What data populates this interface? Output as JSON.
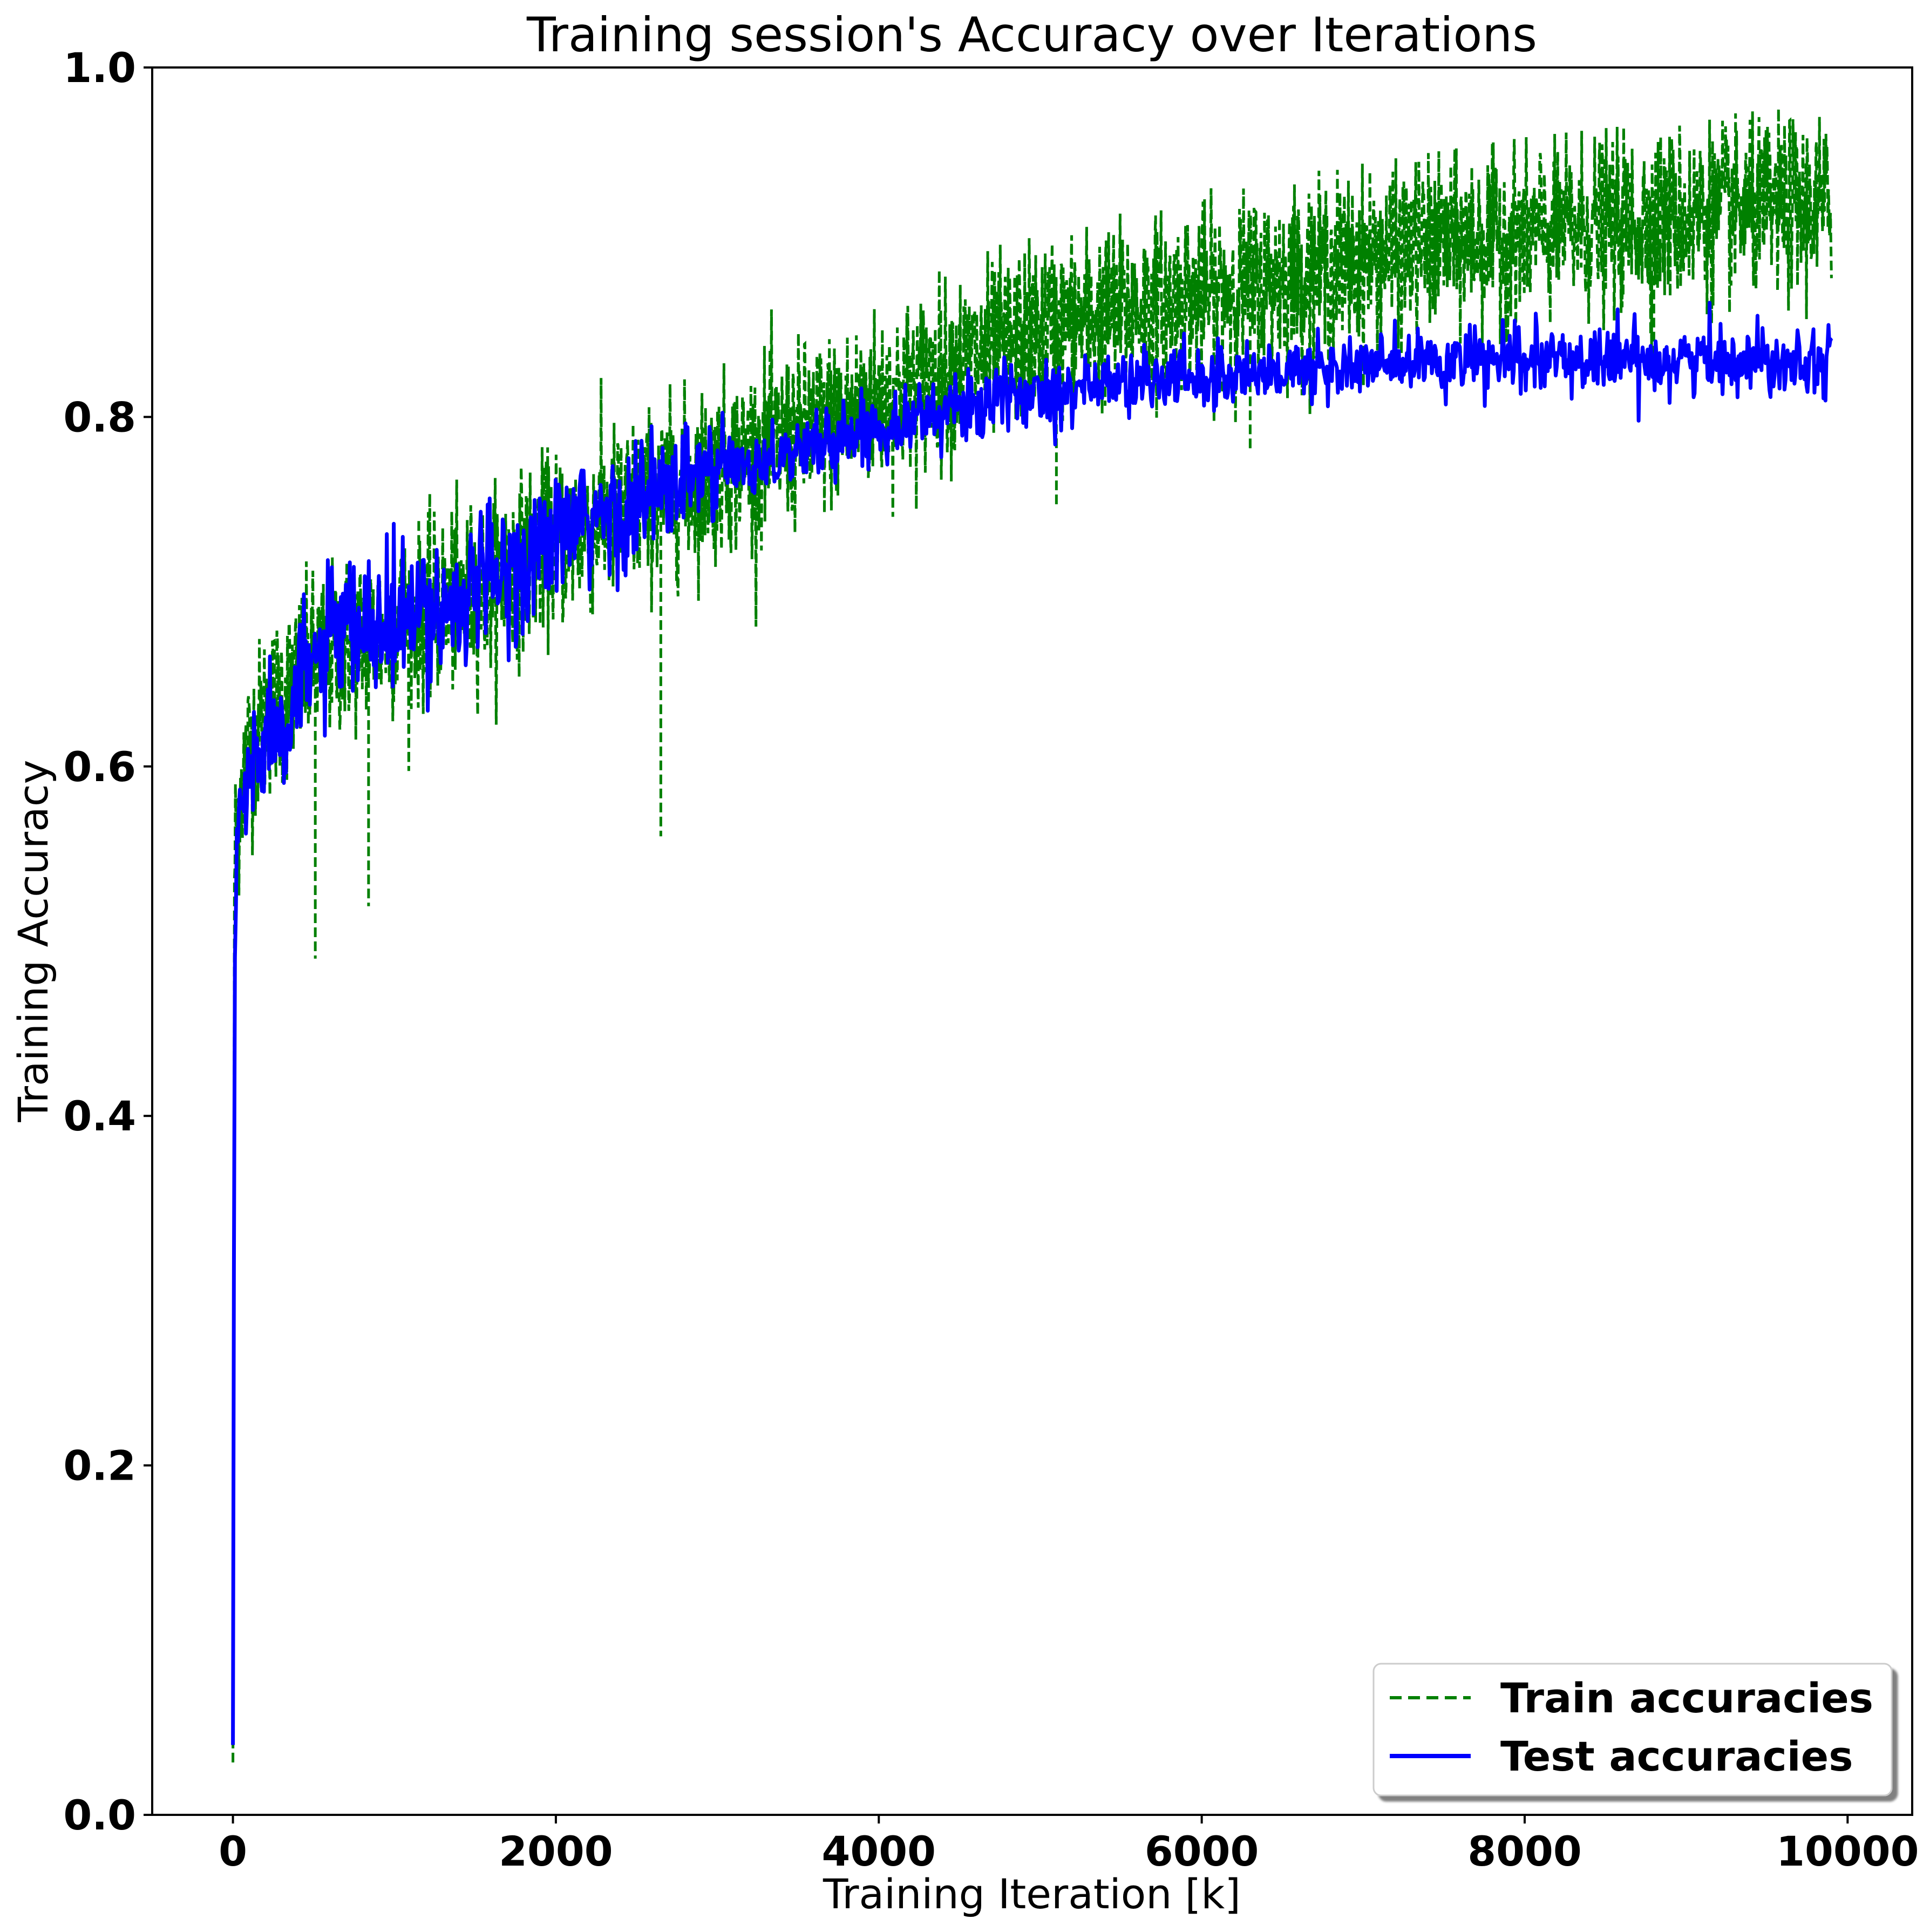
{
  "chart_data": {
    "type": "line",
    "title": "Training session's Accuracy over Iterations",
    "xlabel": "Training Iteration [k]",
    "ylabel": "Training Accuracy",
    "xlim": [
      -500,
      10400
    ],
    "ylim": [
      0.0,
      1.0
    ],
    "xticks": [
      0,
      2000,
      4000,
      6000,
      8000,
      10000
    ],
    "xtick_labels": [
      "0",
      "2000",
      "4000",
      "6000",
      "8000",
      "10000"
    ],
    "yticks": [
      0.0,
      0.2,
      0.4,
      0.6,
      0.8,
      1.0
    ],
    "ytick_labels": [
      "0.0",
      "0.2",
      "0.4",
      "0.6",
      "0.8",
      "1.0"
    ],
    "grid": false,
    "legend_position": "bottom-right",
    "series": [
      {
        "name": "Train accuracies",
        "color": "#008000",
        "line_style": "dashed",
        "x": [
          0,
          10,
          50,
          100,
          200,
          300,
          400,
          500,
          700,
          1000,
          1500,
          2000,
          2500,
          3000,
          3500,
          4000,
          4500,
          5000,
          5500,
          6000,
          6500,
          7000,
          7500,
          8000,
          8500,
          9000,
          9500,
          9900
        ],
        "y": [
          0.03,
          0.55,
          0.59,
          0.61,
          0.63,
          0.64,
          0.65,
          0.66,
          0.67,
          0.68,
          0.7,
          0.73,
          0.75,
          0.77,
          0.79,
          0.81,
          0.83,
          0.85,
          0.86,
          0.87,
          0.88,
          0.89,
          0.9,
          0.905,
          0.91,
          0.915,
          0.92,
          0.92
        ],
        "noise_band": 0.045,
        "envelope_max": [
          [
            0,
            0.65
          ],
          [
            300,
            0.72
          ],
          [
            700,
            0.77
          ],
          [
            1500,
            0.8
          ],
          [
            3000,
            0.86
          ],
          [
            4500,
            0.9
          ],
          [
            6000,
            0.93
          ],
          [
            8000,
            0.96
          ],
          [
            9900,
            0.98
          ]
        ],
        "envelope_min": [
          [
            0,
            0.03
          ],
          [
            100,
            0.5
          ],
          [
            500,
            0.49
          ],
          [
            1000,
            0.56
          ],
          [
            2000,
            0.6
          ],
          [
            2650,
            0.56
          ],
          [
            3500,
            0.66
          ],
          [
            5000,
            0.75
          ],
          [
            6500,
            0.8
          ],
          [
            8500,
            0.82
          ],
          [
            9900,
            0.86
          ]
        ]
      },
      {
        "name": "Test accuracies",
        "color": "#0000ff",
        "line_style": "solid",
        "x": [
          0,
          10,
          30,
          60,
          100,
          150,
          200,
          300,
          400,
          500,
          700,
          1000,
          1500,
          2000,
          2500,
          3000,
          3500,
          4000,
          4500,
          5000,
          5500,
          6000,
          6500,
          7000,
          7500,
          8000,
          8500,
          9000,
          9500,
          9900
        ],
        "y": [
          0.04,
          0.48,
          0.57,
          0.58,
          0.59,
          0.61,
          0.62,
          0.63,
          0.64,
          0.66,
          0.675,
          0.68,
          0.7,
          0.73,
          0.75,
          0.77,
          0.78,
          0.795,
          0.805,
          0.815,
          0.82,
          0.823,
          0.826,
          0.829,
          0.831,
          0.832,
          0.833,
          0.833,
          0.834,
          0.834
        ],
        "noise_band": 0.012
      }
    ]
  }
}
